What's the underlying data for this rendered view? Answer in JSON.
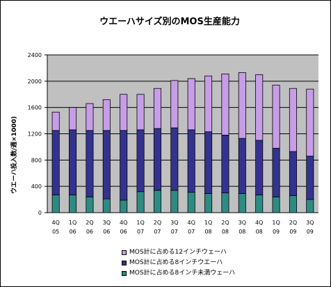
{
  "chart_data": {
    "type": "bar",
    "stacked": true,
    "title": "ウエーハサイズ別のMOS生産能力",
    "ylabel": "ウエーハ投入数/週×1000)",
    "xlabel": "",
    "ylim": [
      0,
      2400
    ],
    "yticks": [
      0,
      400,
      800,
      1200,
      1600,
      2000,
      2400
    ],
    "grid": true,
    "legend": "bottom",
    "categories": [
      [
        "4Q",
        "05"
      ],
      [
        "1Q",
        "06"
      ],
      [
        "2Q",
        "06"
      ],
      [
        "3Q",
        "06"
      ],
      [
        "4Q",
        "06"
      ],
      [
        "1Q",
        "07"
      ],
      [
        "2Q",
        "07"
      ],
      [
        "3Q",
        "07"
      ],
      [
        "4Q",
        "07"
      ],
      [
        "1Q",
        "08"
      ],
      [
        "2Q",
        "08"
      ],
      [
        "3Q",
        "08"
      ],
      [
        "4Q",
        "08"
      ],
      [
        "1Q",
        "09"
      ],
      [
        "2Q",
        "09"
      ],
      [
        "3Q",
        "09"
      ]
    ],
    "series": [
      {
        "name": "MOS計に占める8インチ未満ウェーハ",
        "color": "#2e8b83",
        "values": [
          270,
          270,
          240,
          210,
          190,
          320,
          340,
          340,
          310,
          290,
          300,
          290,
          270,
          240,
          260,
          200
        ]
      },
      {
        "name": "MOS計に占める8インチウエーハ",
        "color": "#33338f",
        "values": [
          980,
          990,
          1010,
          1040,
          1060,
          940,
          940,
          950,
          950,
          940,
          880,
          840,
          830,
          740,
          670,
          660
        ]
      },
      {
        "name": "MOS計に占める12インチウェーハ",
        "color": "#c79de8",
        "values": [
          280,
          340,
          410,
          470,
          550,
          540,
          610,
          720,
          780,
          850,
          930,
          1000,
          1000,
          960,
          960,
          1020
        ]
      }
    ]
  },
  "legend_order": [
    2,
    1,
    0
  ],
  "colors": {
    "plot_background": "#c0c0c0",
    "gridline": "#000000"
  }
}
